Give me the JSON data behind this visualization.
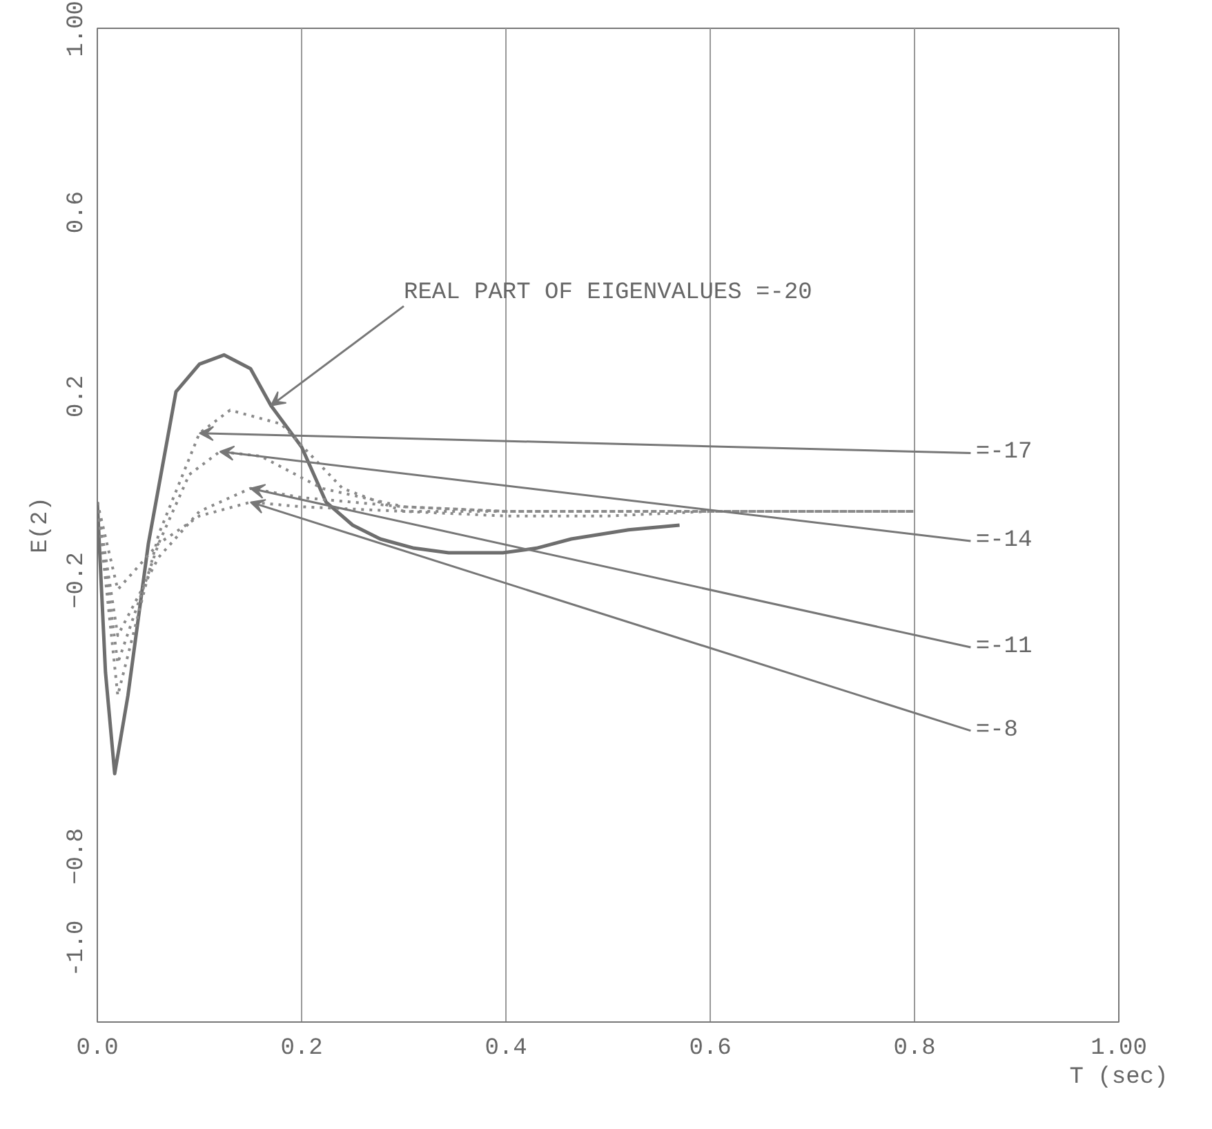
{
  "chart_data": {
    "type": "line",
    "xlabel": "T (sec)",
    "ylabel": "E(2)",
    "xlim": [
      0,
      1.0
    ],
    "ylim": [
      -1.16,
      1.0
    ],
    "xticks": [
      {
        "value": 0,
        "label": "0.0"
      },
      0.2,
      0.4,
      0.6,
      0.8,
      {
        "value": 1.0,
        "label": "1.00"
      }
    ],
    "yticks": [
      {
        "value": -1.0,
        "label": "-1.0"
      },
      -0.8,
      -0.2,
      0.2,
      0.6,
      {
        "value": 1.0,
        "label": "1.00"
      }
    ],
    "grid": "x",
    "marker": "none",
    "series": [
      {
        "color": "#6e6e6e",
        "line_style": "solid",
        "x": [
          0,
          0.008,
          0.017,
          0.03,
          0.05,
          0.077,
          0.1,
          0.124,
          0.15,
          0.17,
          0.2,
          0.224,
          0.25,
          0.277,
          0.31,
          0.344,
          0.397,
          0.43,
          0.464,
          0.52,
          0.57
        ],
        "values": [
          -0.03,
          -0.4,
          -0.62,
          -0.45,
          -0.12,
          0.21,
          0.27,
          0.29,
          0.26,
          0.18,
          0.09,
          -0.03,
          -0.08,
          -0.11,
          -0.13,
          -0.14,
          -0.14,
          -0.13,
          -0.11,
          -0.09,
          -0.08
        ]
      },
      {
        "color": "#8a8a8a",
        "line_style": "dotted",
        "x": [
          0,
          0.02,
          0.06,
          0.1,
          0.13,
          0.18,
          0.24,
          0.3,
          0.4,
          0.5,
          0.6,
          0.8
        ],
        "values": [
          -0.03,
          -0.45,
          -0.1,
          0.12,
          0.17,
          0.14,
          0.0,
          -0.05,
          -0.06,
          -0.06,
          -0.05,
          -0.05
        ]
      },
      {
        "color": "#8a8a8a",
        "line_style": "dotted",
        "x": [
          0,
          0.02,
          0.06,
          0.09,
          0.12,
          0.16,
          0.22,
          0.3,
          0.4,
          0.5,
          0.6,
          0.8
        ],
        "values": [
          -0.03,
          -0.38,
          -0.12,
          0.03,
          0.08,
          0.07,
          0.0,
          -0.04,
          -0.05,
          -0.05,
          -0.05,
          -0.05
        ]
      },
      {
        "color": "#8a8a8a",
        "line_style": "dotted",
        "x": [
          0,
          0.02,
          0.06,
          0.1,
          0.15,
          0.2,
          0.3,
          0.4,
          0.5,
          0.6,
          0.8
        ],
        "values": [
          -0.03,
          -0.32,
          -0.15,
          -0.05,
          0.0,
          -0.02,
          -0.04,
          -0.05,
          -0.05,
          -0.05,
          -0.05
        ]
      },
      {
        "color": "#8a8a8a",
        "line_style": "dotted",
        "x": [
          0,
          0.02,
          0.06,
          0.1,
          0.15,
          0.2,
          0.3,
          0.4,
          0.5,
          0.6,
          0.8
        ],
        "values": [
          -0.03,
          -0.22,
          -0.12,
          -0.06,
          -0.03,
          -0.04,
          -0.05,
          -0.05,
          -0.05,
          -0.05,
          -0.05
        ]
      }
    ],
    "annotations": [
      {
        "text": "REAL PART OF EIGENVALUES =-20",
        "x": 0.17,
        "y": 0.18
      },
      {
        "text": "=-17",
        "x": 0.1,
        "y": 0.12
      },
      {
        "text": "=-14",
        "x": 0.12,
        "y": 0.08
      },
      {
        "text": "=-11",
        "x": 0.15,
        "y": 0.0
      },
      {
        "text": "=-8",
        "x": 0.15,
        "y": -0.03
      }
    ]
  }
}
